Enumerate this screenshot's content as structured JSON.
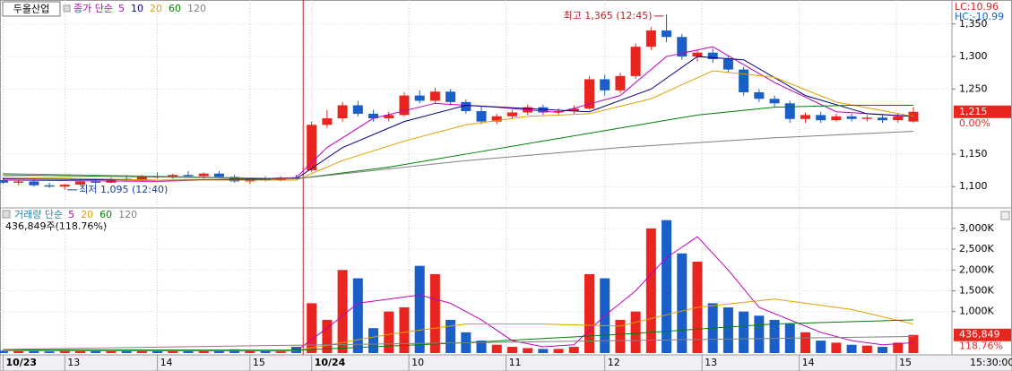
{
  "chart_data": [
    {
      "type": "candlestick",
      "title": "두올산업",
      "legend_label": "종가 단순",
      "xlim": [
        -0.2,
        61.5
      ],
      "ylim": [
        1070,
        1380
      ],
      "yticks": [
        {
          "value": 1100,
          "label": "1,100"
        },
        {
          "value": 1150,
          "label": "1,150"
        },
        {
          "value": 1250,
          "label": "1,250"
        },
        {
          "value": 1300,
          "label": "1,300"
        },
        {
          "value": 1350,
          "label": "1,350"
        }
      ],
      "up_color": "#e8251f",
      "down_color": "#1a5fc8",
      "open": [
        1110,
        1106,
        1108,
        1102,
        1100,
        1103,
        1108,
        1106,
        1112,
        1110,
        1116,
        1114,
        1118,
        1116,
        1120,
        1115,
        1108,
        1112,
        1110,
        1114,
        1125,
        1195,
        1205,
        1225,
        1212,
        1205,
        1210,
        1240,
        1232,
        1246,
        1230,
        1216,
        1200,
        1208,
        1214,
        1222,
        1214,
        1216,
        1220,
        1265,
        1248,
        1270,
        1315,
        1340,
        1330,
        1300,
        1306,
        1296,
        1280,
        1245,
        1235,
        1228,
        1204,
        1210,
        1202,
        1208,
        1204,
        1206,
        1202,
        1200
      ],
      "high": [
        1114,
        1110,
        1112,
        1106,
        1104,
        1110,
        1112,
        1114,
        1118,
        1118,
        1122,
        1120,
        1124,
        1122,
        1124,
        1118,
        1114,
        1116,
        1116,
        1118,
        1200,
        1218,
        1230,
        1232,
        1218,
        1215,
        1245,
        1248,
        1252,
        1250,
        1234,
        1224,
        1212,
        1218,
        1226,
        1226,
        1220,
        1225,
        1270,
        1272,
        1275,
        1320,
        1345,
        1365,
        1335,
        1310,
        1312,
        1302,
        1284,
        1250,
        1240,
        1232,
        1214,
        1215,
        1212,
        1212,
        1210,
        1210,
        1212,
        1222
      ],
      "low": [
        1104,
        1102,
        1100,
        1098,
        1095,
        1102,
        1104,
        1105,
        1108,
        1109,
        1112,
        1112,
        1114,
        1112,
        1114,
        1106,
        1104,
        1108,
        1108,
        1110,
        1122,
        1190,
        1200,
        1208,
        1200,
        1200,
        1208,
        1228,
        1228,
        1225,
        1212,
        1196,
        1196,
        1204,
        1210,
        1210,
        1210,
        1212,
        1218,
        1240,
        1244,
        1266,
        1310,
        1322,
        1295,
        1292,
        1290,
        1275,
        1240,
        1230,
        1222,
        1198,
        1198,
        1198,
        1200,
        1200,
        1200,
        1198,
        1198,
        1198
      ],
      "close": [
        1106,
        1108,
        1102,
        1100,
        1103,
        1108,
        1106,
        1112,
        1110,
        1116,
        1114,
        1118,
        1116,
        1120,
        1115,
        1108,
        1112,
        1110,
        1114,
        1112,
        1195,
        1205,
        1225,
        1212,
        1205,
        1210,
        1240,
        1232,
        1246,
        1230,
        1216,
        1200,
        1208,
        1214,
        1222,
        1214,
        1216,
        1220,
        1265,
        1248,
        1270,
        1315,
        1340,
        1330,
        1300,
        1306,
        1296,
        1280,
        1245,
        1235,
        1228,
        1204,
        1210,
        1202,
        1208,
        1204,
        1206,
        1202,
        1208,
        1215
      ],
      "series": [
        {
          "name": "5",
          "color": "#c000c0",
          "x": [
            0,
            10,
            19,
            21,
            24,
            28,
            32,
            36,
            40,
            43,
            46,
            50,
            54,
            59
          ],
          "values": [
            1110,
            1108,
            1114,
            1160,
            1205,
            1228,
            1222,
            1214,
            1240,
            1300,
            1315,
            1260,
            1215,
            1208
          ]
        },
        {
          "name": "10",
          "color": "#000080",
          "x": [
            0,
            10,
            19,
            22,
            26,
            30,
            34,
            38,
            42,
            45,
            48,
            52,
            56,
            59
          ],
          "values": [
            1112,
            1110,
            1112,
            1160,
            1200,
            1225,
            1220,
            1215,
            1250,
            1300,
            1295,
            1240,
            1212,
            1208
          ]
        },
        {
          "name": "20",
          "color": "#e0a000",
          "x": [
            0,
            10,
            19,
            22,
            26,
            30,
            34,
            38,
            42,
            46,
            50,
            54,
            59
          ],
          "values": [
            1115,
            1110,
            1110,
            1140,
            1170,
            1195,
            1208,
            1212,
            1235,
            1278,
            1268,
            1230,
            1208
          ]
        },
        {
          "name": "60",
          "color": "#008000",
          "x": [
            0,
            19,
            25,
            30,
            35,
            40,
            45,
            50,
            55,
            59
          ],
          "values": [
            1118,
            1112,
            1130,
            1150,
            1170,
            1190,
            1210,
            1222,
            1225,
            1225
          ]
        },
        {
          "name": "120",
          "color": "#808080",
          "x": [
            0,
            19,
            30,
            40,
            50,
            59
          ],
          "values": [
            1120,
            1112,
            1140,
            1160,
            1175,
            1185
          ]
        }
      ],
      "max_label": "최고 1,365 (12:45)",
      "min_label": "최저 1,095 (12:40)",
      "lc_label": "LC:10.96",
      "hc_label": "HC:-10.99",
      "last_label": "1,215",
      "pct_label": "0.00%"
    },
    {
      "type": "bar",
      "legend_label": "거래량 단순",
      "info_label": "436,849주(118.76%)",
      "xlim": [
        -0.2,
        61.5
      ],
      "ylim": [
        0,
        3430000
      ],
      "yticks": [
        {
          "value": 1000000,
          "label": "1,000K"
        },
        {
          "value": 1500000,
          "label": "1,500K"
        },
        {
          "value": 2000000,
          "label": "2,000K"
        },
        {
          "value": 2500000,
          "label": "2,500K"
        },
        {
          "value": 3000000,
          "label": "3,000K"
        }
      ],
      "values": [
        60000,
        50000,
        70000,
        40000,
        80000,
        50000,
        60000,
        45000,
        70000,
        55000,
        65000,
        50000,
        60000,
        70000,
        50000,
        90000,
        60000,
        50000,
        40000,
        150000,
        1200000,
        800000,
        2000000,
        1800000,
        600000,
        1000000,
        1100000,
        2100000,
        1900000,
        800000,
        500000,
        300000,
        200000,
        150000,
        120000,
        100000,
        100000,
        150000,
        1900000,
        1800000,
        800000,
        1000000,
        3000000,
        3200000,
        2400000,
        2200000,
        1200000,
        1100000,
        1000000,
        900000,
        800000,
        700000,
        500000,
        300000,
        250000,
        200000,
        180000,
        150000,
        250000,
        436849
      ],
      "last_label": "436,849",
      "pct_label": "118.76%",
      "series": [
        {
          "name": "5",
          "color": "#c000c0",
          "x": [
            0,
            19,
            21,
            23,
            25,
            27,
            29,
            31,
            33,
            35,
            37,
            39,
            41,
            43,
            45,
            47,
            49,
            51,
            53,
            55,
            57,
            59
          ],
          "values": [
            60000,
            50000,
            600000,
            1200000,
            1300000,
            1400000,
            1200000,
            800000,
            300000,
            150000,
            200000,
            900000,
            1500000,
            2300000,
            2800000,
            2000000,
            1100000,
            800000,
            500000,
            300000,
            200000,
            250000
          ]
        },
        {
          "name": "20",
          "color": "#e0a000",
          "x": [
            0,
            19,
            25,
            30,
            35,
            40,
            45,
            50,
            55,
            59
          ],
          "values": [
            60000,
            60000,
            450000,
            700000,
            700000,
            650000,
            1100000,
            1300000,
            1050000,
            700000
          ]
        },
        {
          "name": "60",
          "color": "#008000",
          "x": [
            0,
            19,
            30,
            40,
            50,
            59
          ],
          "values": [
            80000,
            70000,
            250000,
            450000,
            700000,
            800000
          ]
        },
        {
          "name": "120",
          "color": "#808080",
          "x": [
            0,
            59
          ],
          "values": [
            90000,
            400000
          ]
        }
      ],
      "xticks": [
        {
          "value": 0,
          "label": "10/23"
        },
        {
          "value": 4,
          "label": "13"
        },
        {
          "value": 10,
          "label": "14"
        },
        {
          "value": 16,
          "label": "15"
        },
        {
          "value": 20,
          "label": "10/24"
        },
        {
          "value": 26.3,
          "label": "10"
        },
        {
          "value": 32.6,
          "label": "11"
        },
        {
          "value": 39,
          "label": "12"
        },
        {
          "value": 45.3,
          "label": "13"
        },
        {
          "value": 51.6,
          "label": "14"
        },
        {
          "value": 57.9,
          "label": "15"
        }
      ],
      "time_label": "15:30:00"
    }
  ]
}
